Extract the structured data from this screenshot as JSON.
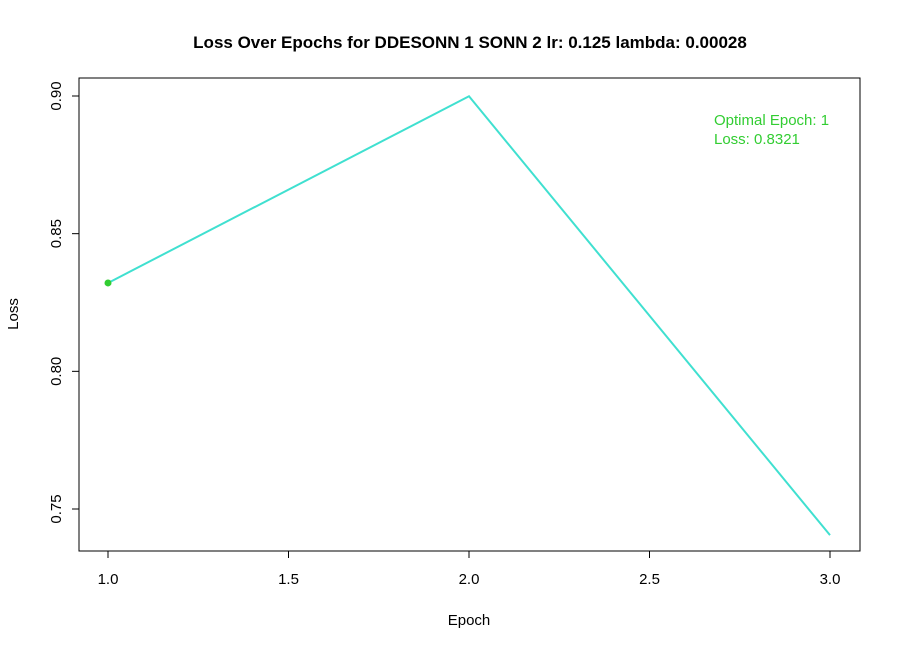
{
  "chart_data": {
    "type": "line",
    "title": "Loss Over Epochs for DDESONN 1 SONN 2 lr: 0.125 lambda: 0.00028",
    "xlabel": "Epoch",
    "ylabel": "Loss",
    "x": [
      1,
      2,
      3
    ],
    "series": [
      {
        "values": [
          0.8321,
          0.8999,
          0.7405
        ],
        "color": "#40E0D0"
      }
    ],
    "xlim": [
      1,
      3
    ],
    "ylim": [
      0.74,
      0.9
    ],
    "xticks": [
      "1.0",
      "1.5",
      "2.0",
      "2.5",
      "3.0"
    ],
    "xtick_values": [
      1.0,
      1.5,
      2.0,
      2.5,
      3.0
    ],
    "yticks": [
      "0.75",
      "0.80",
      "0.85",
      "0.90"
    ],
    "ytick_values": [
      0.75,
      0.8,
      0.85,
      0.9
    ],
    "grid": false,
    "highlight_point": {
      "x": 1,
      "y": 0.8321,
      "color": "#32CD32"
    },
    "annotation": {
      "lines": [
        "Optimal Epoch: 1",
        "Loss: 0.8321"
      ],
      "color": "#32CD32",
      "placement": "top-right"
    }
  }
}
